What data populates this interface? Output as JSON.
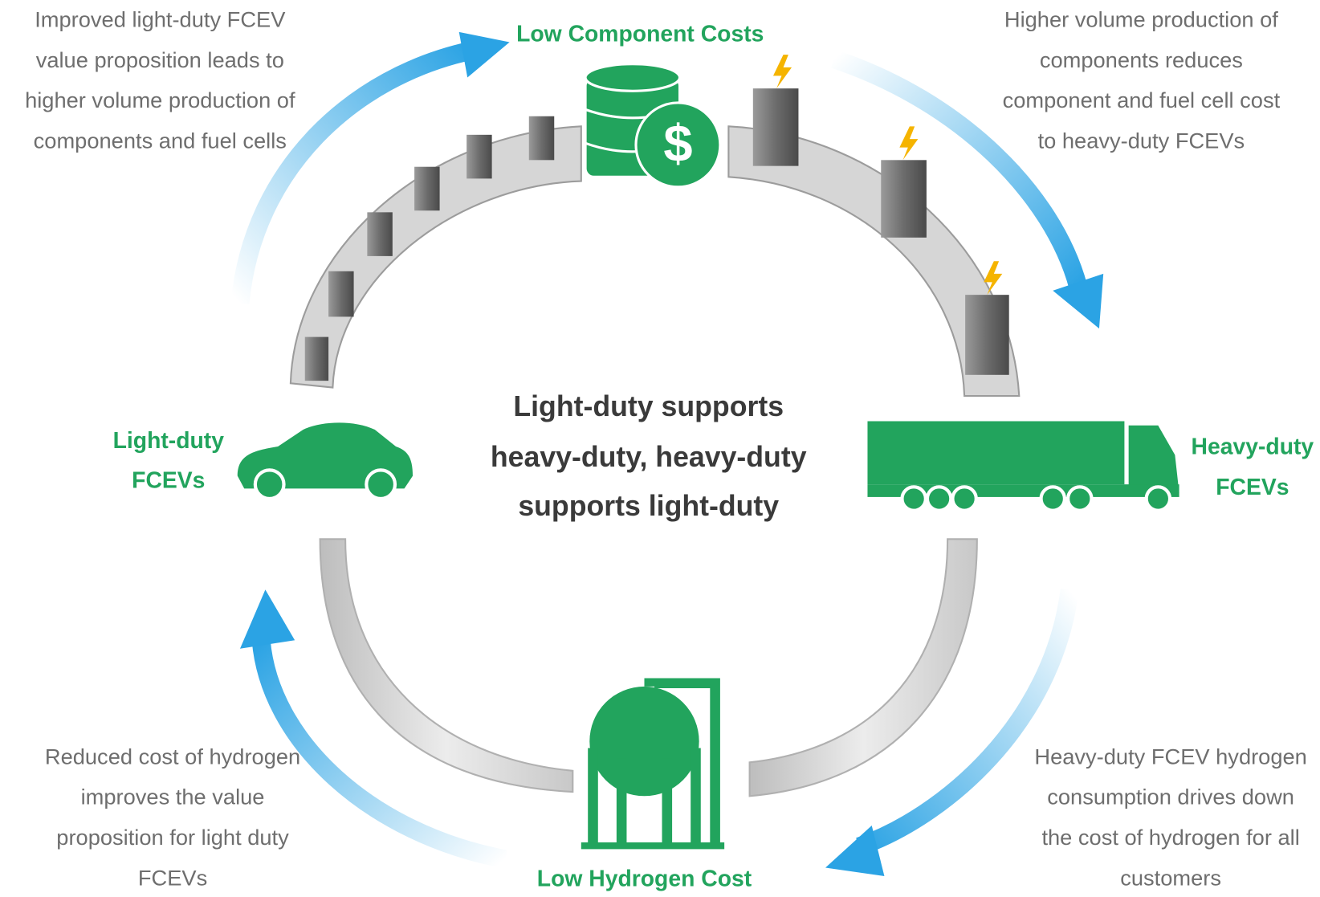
{
  "labels": {
    "top": "Low Component Costs",
    "bottom": "Low Hydrogen Cost",
    "left": [
      "Light-duty",
      "FCEVs"
    ],
    "right": [
      "Heavy-duty",
      "FCEVs"
    ]
  },
  "center": [
    "Light-duty supports",
    "heavy-duty, heavy-duty",
    "supports light-duty"
  ],
  "notes": {
    "top_left": [
      "Improved light-duty FCEV",
      "value proposition leads to",
      "higher volume production of",
      "components and fuel cells"
    ],
    "top_right": [
      "Higher volume production of",
      "components reduces",
      "component and fuel cell cost",
      "to heavy-duty FCEVs"
    ],
    "bottom_left": [
      "Reduced cost of hydrogen",
      "improves the value",
      "proposition for light duty",
      "FCEVs"
    ],
    "bottom_right": [
      "Heavy-duty FCEV hydrogen",
      "consumption drives down",
      "the cost of hydrogen for all",
      "customers"
    ]
  }
}
